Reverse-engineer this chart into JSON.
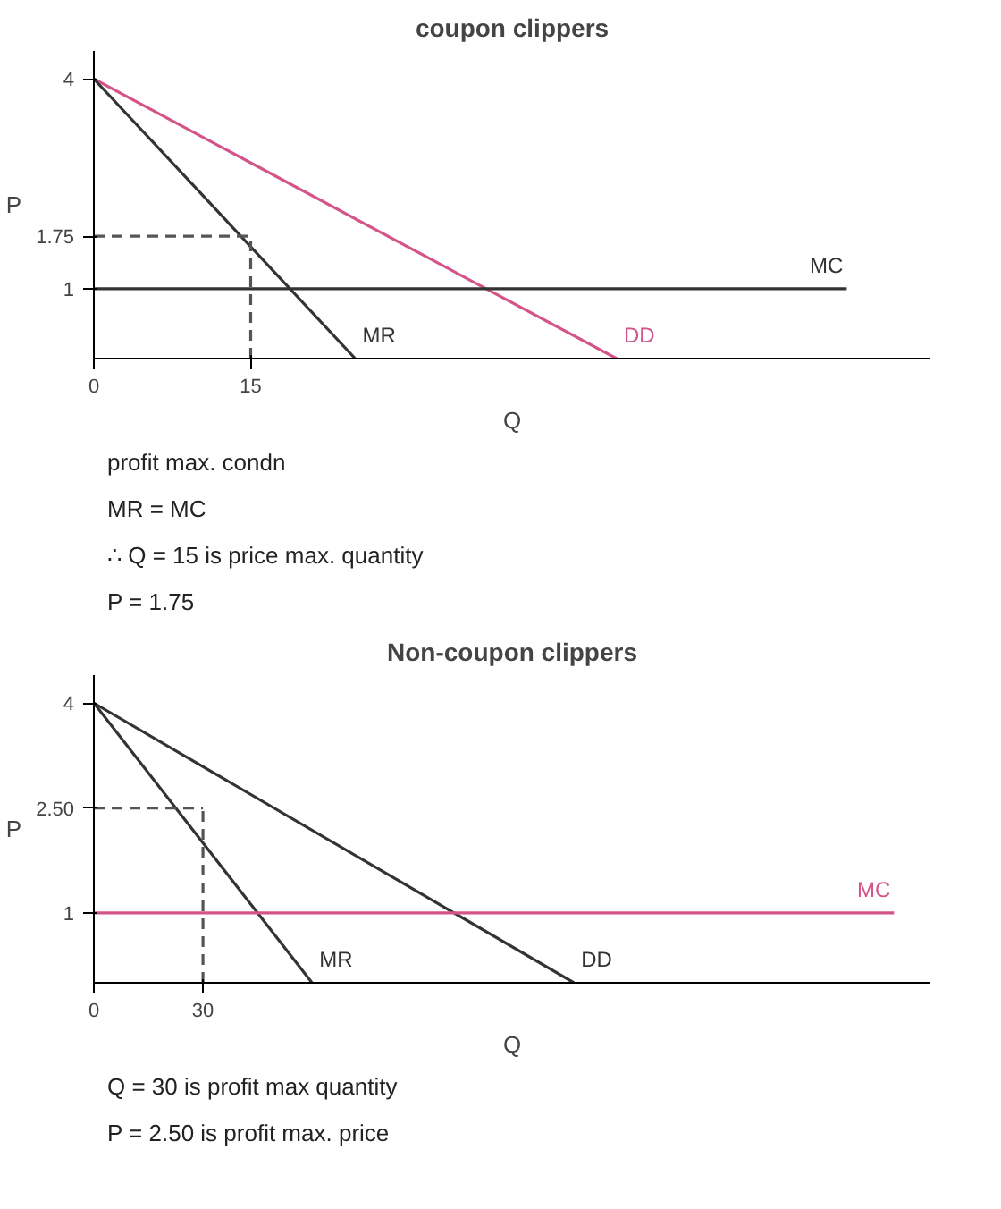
{
  "chart_data": [
    {
      "type": "line",
      "title": "coupon clippers",
      "xlabel": "Q",
      "ylabel": "P",
      "xlim": [
        0,
        80
      ],
      "ylim": [
        0,
        4.4
      ],
      "xticks": [
        0,
        15
      ],
      "yticks": [
        1,
        1.75,
        4
      ],
      "grid": false,
      "legend": false,
      "marker": "none",
      "series": [
        {
          "name": "DD",
          "color": "#d4548a",
          "x": [
            0,
            50
          ],
          "values": [
            4,
            0
          ]
        },
        {
          "name": "MR",
          "color": "#333333",
          "x": [
            0,
            25
          ],
          "values": [
            4,
            0
          ]
        },
        {
          "name": "MC",
          "color": "#333333",
          "x": [
            0,
            72
          ],
          "values": [
            1,
            1
          ]
        },
        {
          "color": "#555555",
          "x": [
            0,
            15
          ],
          "values": [
            1.75,
            1.75
          ],
          "line_style": "dashed"
        },
        {
          "color": "#555555",
          "x": [
            15,
            15
          ],
          "values": [
            0,
            1.75
          ],
          "line_style": "dashed"
        }
      ],
      "annotations": [
        "profit max. condn",
        "MR = MC",
        "∴ Q = 15 is price max. quantity",
        "P = 1.75"
      ]
    },
    {
      "type": "line",
      "title": "Non-coupon clippers",
      "xlabel": "Q",
      "ylabel": "P",
      "xlim": [
        0,
        230
      ],
      "ylim": [
        0,
        4.4
      ],
      "xticks": [
        0,
        30
      ],
      "yticks": [
        1,
        {
          "value": 2.5,
          "label": "2.50"
        },
        4
      ],
      "grid": false,
      "legend": false,
      "marker": "none",
      "series": [
        {
          "name": "DD",
          "color": "#333333",
          "x": [
            0,
            132
          ],
          "values": [
            4,
            0
          ]
        },
        {
          "name": "MR",
          "color": "#333333",
          "x": [
            0,
            60
          ],
          "values": [
            4,
            0
          ]
        },
        {
          "name": "MC",
          "color": "#d4548a",
          "x": [
            0,
            220
          ],
          "values": [
            1,
            1
          ]
        },
        {
          "color": "#555555",
          "x": [
            0,
            30
          ],
          "values": [
            2.5,
            2.5
          ],
          "line_style": "dashed"
        },
        {
          "color": "#555555",
          "x": [
            30,
            30
          ],
          "values": [
            0,
            2.5
          ],
          "line_style": "dashed"
        }
      ],
      "annotations": [
        "Q = 30 is profit max quantity",
        "P = 2.50 is profit max. price"
      ]
    }
  ]
}
